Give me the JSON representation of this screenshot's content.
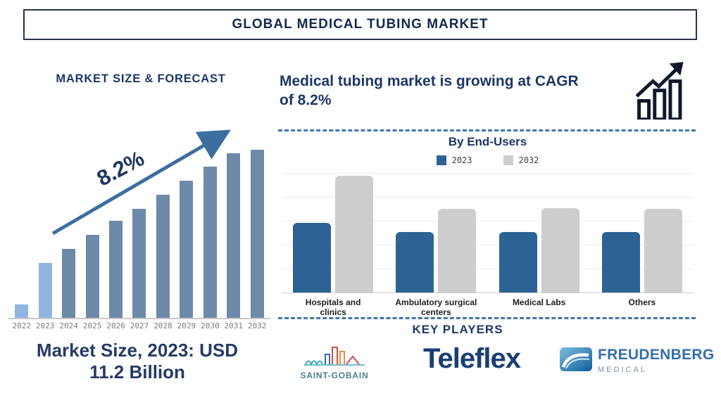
{
  "title": "GLOBAL MEDICAL TUBING MARKET",
  "left_panel": {
    "heading": "MARKET SIZE & FORECAST",
    "cagr_label": "8.2%",
    "caption_lines": [
      "Market Size, 2023: USD",
      "11.2 Billion"
    ]
  },
  "right_panel": {
    "heading_lines": [
      "Medical tubing market is growing at CAGR",
      "of 8.2%"
    ],
    "by_end_users_title": "By End-Users",
    "key_players_title": "KEY PLAYERS"
  },
  "key_players": [
    {
      "name": "Saint-Gobain",
      "wordmark": "SAINT-GOBAIN"
    },
    {
      "name": "Teleflex",
      "wordmark": "Teleflex"
    },
    {
      "name": "Freudenberg Medical",
      "wordmark": "FREUDENBERG",
      "sub": "MEDICAL"
    }
  ],
  "chart_data": [
    {
      "id": "market_size_forecast",
      "type": "bar",
      "title": "MARKET SIZE & FORECAST",
      "categories": [
        "2022",
        "2023",
        "2024",
        "2025",
        "2026",
        "2027",
        "2028",
        "2029",
        "2030",
        "2031",
        "2032"
      ],
      "values": [
        19,
        78,
        98,
        118,
        138,
        155,
        175,
        195,
        215,
        234,
        239
      ],
      "units": "relative bar height in px (value axis not shown in source)",
      "highlight_categories": [
        "2022",
        "2023"
      ],
      "bar_color": "#6e8aa9",
      "highlight_color": "#90b6e0",
      "annotations": [
        "8.2% CAGR growth arrow",
        "Market Size, 2023: USD 11.2 Billion"
      ],
      "grid": false,
      "legend": false
    },
    {
      "id": "by_end_users",
      "type": "bar",
      "title": "By End-Users",
      "categories": [
        "Hospitals and clinics",
        "Ambulatory surgical centers",
        "Medical Labs",
        "Others"
      ],
      "series": [
        {
          "name": "2023",
          "values": [
            99,
            86,
            86,
            86
          ],
          "color": "#2d6394"
        },
        {
          "name": "2032",
          "values": [
            166,
            119,
            120,
            119
          ],
          "color": "#cdcdcd"
        }
      ],
      "units": "relative bar height in px (value axis not shown in source)",
      "grid": true,
      "legend_position": "top"
    }
  ],
  "colors": {
    "navy_text": "#1c3766",
    "title_text": "#14294e",
    "accent_blue": "#2d6394",
    "gray_bar": "#cdcdcd",
    "forecast_bar": "#6e8aa9",
    "forecast_highlight": "#90b6e0",
    "arrow_blue": "#3c6e9f",
    "dashed_line": "#4477aa",
    "year_label": "#7b7b7b"
  }
}
